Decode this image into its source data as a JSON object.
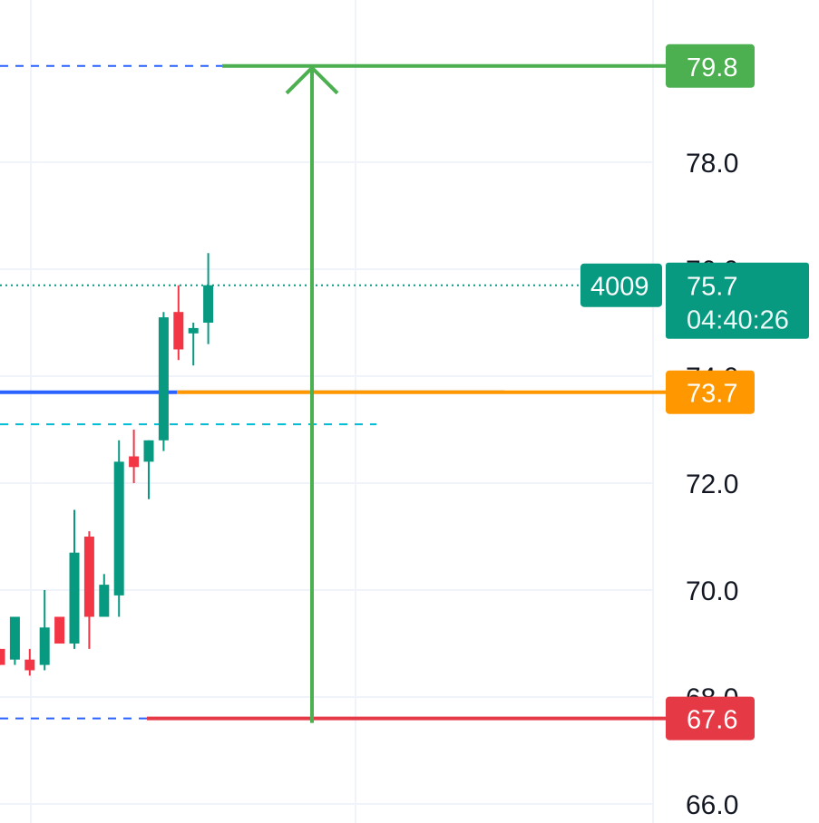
{
  "chart_data": {
    "type": "candlestick",
    "y_axis": {
      "ticks": [
        "66.0",
        "68.0",
        "70.0",
        "72.0",
        "74.0",
        "76.0",
        "78.0"
      ]
    },
    "candles": [
      {
        "o": 68.9,
        "h": 68.9,
        "l": 68.6,
        "c": 68.6
      },
      {
        "o": 68.7,
        "h": 69.5,
        "l": 68.6,
        "c": 69.5
      },
      {
        "o": 68.7,
        "h": 68.9,
        "l": 68.4,
        "c": 68.5
      },
      {
        "o": 68.6,
        "h": 70.0,
        "l": 68.5,
        "c": 69.3
      },
      {
        "o": 69.5,
        "h": 69.5,
        "l": 69.0,
        "c": 69.0
      },
      {
        "o": 69.0,
        "h": 71.5,
        "l": 68.9,
        "c": 70.7
      },
      {
        "o": 71.0,
        "h": 71.1,
        "l": 68.9,
        "c": 69.5
      },
      {
        "o": 69.5,
        "h": 70.3,
        "l": 69.5,
        "c": 70.1
      },
      {
        "o": 69.9,
        "h": 72.8,
        "l": 69.5,
        "c": 72.4
      },
      {
        "o": 72.5,
        "h": 73.0,
        "l": 72.0,
        "c": 72.3
      },
      {
        "o": 72.4,
        "h": 72.8,
        "l": 71.7,
        "c": 72.8
      },
      {
        "o": 72.8,
        "h": 75.2,
        "l": 72.6,
        "c": 75.1
      },
      {
        "o": 75.2,
        "h": 75.7,
        "l": 74.3,
        "c": 74.5
      },
      {
        "o": 74.8,
        "h": 75.0,
        "l": 74.2,
        "c": 74.9
      },
      {
        "o": 75.0,
        "h": 76.3,
        "l": 74.6,
        "c": 75.7
      }
    ],
    "levels": {
      "target": 79.8,
      "entry": 73.7,
      "stop": 67.6,
      "blue_line": 73.7,
      "dashed_cyan": 73.1,
      "current": 75.7
    },
    "badges": {
      "target_label": "79.8",
      "entry_label": "73.7",
      "stop_label": "67.6",
      "price_label": "75.7",
      "countdown": "04:40:26",
      "volume_label": "4009"
    },
    "colors": {
      "up": "#089981",
      "down": "#f23645",
      "target": "#4caf50",
      "stop": "#e63946",
      "entry": "#ff9800",
      "blue": "#2962ff",
      "price": "#089981",
      "grid": "#f0f3fa",
      "dash_blue": "#2962ff",
      "dash_cyan": "#00bcd4"
    }
  }
}
